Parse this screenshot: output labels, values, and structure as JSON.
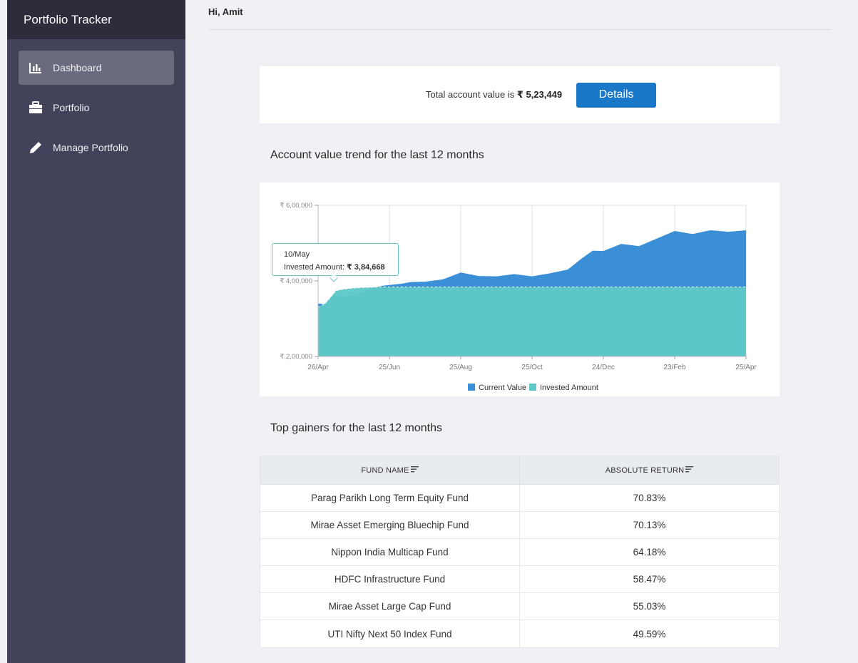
{
  "app": {
    "title": "Portfolio Tracker"
  },
  "sidebar": {
    "items": [
      {
        "label": "Dashboard",
        "icon": "bar-chart-icon",
        "active": true
      },
      {
        "label": "Portfolio",
        "icon": "briefcase-icon",
        "active": false
      },
      {
        "label": "Manage Portfolio",
        "icon": "pencil-icon",
        "active": false
      }
    ]
  },
  "header": {
    "greeting": "Hi, Amit"
  },
  "summary": {
    "prefix": "Total account value is ",
    "value": "₹ 5,23,449",
    "details_label": "Details"
  },
  "trend": {
    "title": "Account value trend for the last 12 months",
    "tooltip": {
      "date": "10/May",
      "label": "Invested Amount: ",
      "value": "₹ 3,84,668"
    }
  },
  "chart_data": {
    "type": "area",
    "categories": [
      "26/Apr",
      "25/Jun",
      "25/Aug",
      "25/Oct",
      "24/Dec",
      "23/Feb",
      "25/Apr"
    ],
    "y_ticks": [
      "₹ 2,00,000",
      "₹ 4,00,000",
      "₹ 6,00,000"
    ],
    "ylim": [
      200000,
      600000
    ],
    "x": [
      0,
      0.2,
      0.4,
      0.5,
      0.7,
      0.9,
      1.0,
      1.2,
      1.5,
      1.8,
      2.0,
      2.3,
      2.6,
      3.0,
      3.5,
      4.0,
      4.5,
      5.0,
      5.5,
      6.0,
      6.5,
      7.0,
      7.4,
      7.7,
      8.0,
      8.5,
      9.0,
      9.5,
      10.0,
      10.5,
      11.0,
      11.5,
      12.0
    ],
    "series": [
      {
        "name": "Current Value",
        "color": "#3a8fd6",
        "values": [
          340000,
          338000,
          362000,
          362000,
          358000,
          360000,
          364000,
          368000,
          380000,
          387000,
          389000,
          392000,
          397000,
          398000,
          404000,
          422000,
          413000,
          412000,
          418000,
          412000,
          420000,
          430000,
          460000,
          480000,
          479000,
          498000,
          492000,
          512000,
          532000,
          524000,
          534000,
          530000,
          534000
        ]
      },
      {
        "name": "Invested Amount",
        "color": "#5ec8c8",
        "values": [
          330000,
          340000,
          362000,
          374000,
          378000,
          380000,
          381000,
          382000,
          383000,
          384000,
          384000,
          384000,
          384000,
          384000,
          384000,
          384000,
          384000,
          384000,
          384000,
          384000,
          384000,
          384000,
          384000,
          384000,
          384000,
          384000,
          384000,
          384000,
          384000,
          384000,
          384000,
          384000,
          384000
        ]
      }
    ],
    "legend": "bottom",
    "grid": true
  },
  "gainers": {
    "title": "Top gainers for the last 12 months",
    "columns": [
      "FUND NAME",
      "ABSOLUTE RETURN"
    ],
    "rows": [
      {
        "name": "Parag Parikh Long Term Equity Fund",
        "ret": "70.83%"
      },
      {
        "name": "Mirae Asset Emerging Bluechip Fund",
        "ret": "70.13%"
      },
      {
        "name": "Nippon India Multicap Fund",
        "ret": "64.18%"
      },
      {
        "name": "HDFC Infrastructure Fund",
        "ret": "58.47%"
      },
      {
        "name": "Mirae Asset Large Cap Fund",
        "ret": "55.03%"
      },
      {
        "name": "UTI Nifty Next 50 Index Fund",
        "ret": "49.59%"
      }
    ]
  }
}
